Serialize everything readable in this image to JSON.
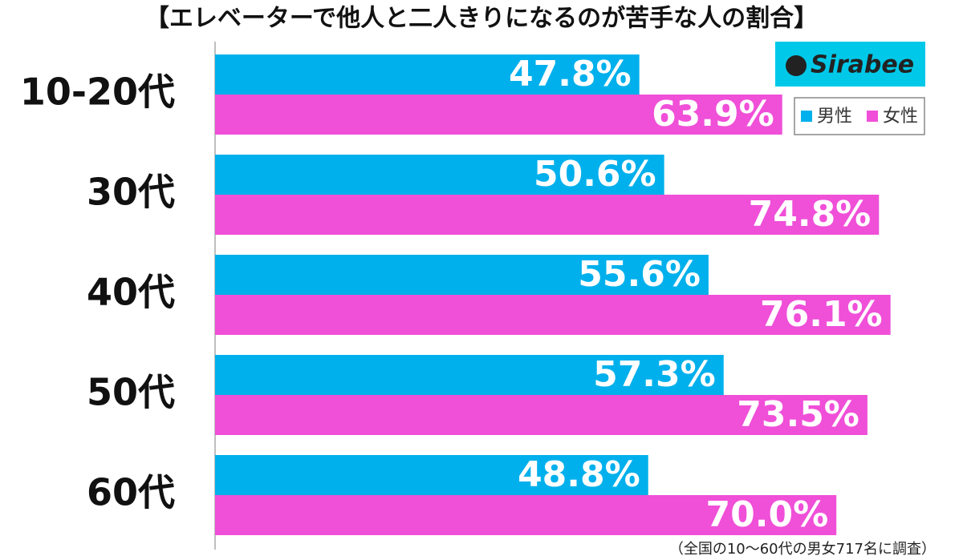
{
  "chart_data": {
    "type": "bar",
    "orientation": "horizontal",
    "title": "【エレベーターで他人と二人きりになるのが苦手な人の割合】",
    "categories": [
      "10-20代",
      "30代",
      "40代",
      "50代",
      "60代"
    ],
    "series": [
      {
        "name": "男性",
        "color": "#00b0ec",
        "values": [
          47.8,
          50.6,
          55.6,
          57.3,
          48.8
        ],
        "value_labels": [
          "47.8%",
          "50.6%",
          "55.6%",
          "57.3%",
          "48.8%"
        ]
      },
      {
        "name": "女性",
        "color": "#f04fd8",
        "values": [
          63.9,
          74.8,
          76.1,
          73.5,
          70.0
        ],
        "value_labels": [
          "63.9%",
          "74.8%",
          "76.1%",
          "73.5%",
          "70.0%"
        ]
      }
    ],
    "xlim": [
      0,
      80
    ],
    "legend": "upper right",
    "logo": "Sirabee",
    "note": "（全国の10～60代の男女717名に調査）"
  }
}
